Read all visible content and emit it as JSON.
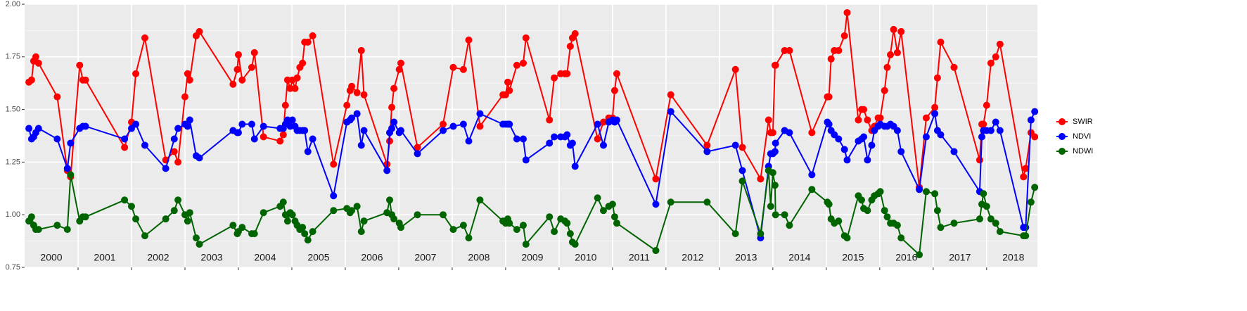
{
  "chart_data": {
    "type": "line",
    "x": [
      2000.08,
      2000.13,
      2000.17,
      2000.21,
      2000.26,
      2000.61,
      2000.8,
      2000.86,
      2001.03,
      2001.09,
      2001.14,
      2001.87,
      2002.0,
      2002.08,
      2002.25,
      2002.64,
      2002.8,
      2002.87,
      2003.0,
      2003.05,
      2003.09,
      2003.21,
      2003.27,
      2003.9,
      2003.98,
      2004.0,
      2004.07,
      2004.25,
      2004.3,
      2004.47,
      2004.78,
      2004.84,
      2004.88,
      2004.92,
      2004.97,
      2005.01,
      2005.06,
      2005.1,
      2005.15,
      2005.2,
      2005.24,
      2005.3,
      2005.39,
      2005.78,
      2006.03,
      2006.09,
      2006.12,
      2006.22,
      2006.3,
      2006.35,
      2006.78,
      2006.83,
      2006.87,
      2006.91,
      2007.01,
      2007.04,
      2007.35,
      2007.83,
      2008.02,
      2008.21,
      2008.31,
      2008.52,
      2008.95,
      2009.0,
      2009.04,
      2009.07,
      2009.21,
      2009.33,
      2009.38,
      2009.82,
      2009.91,
      2010.03,
      2010.11,
      2010.15,
      2010.21,
      2010.25,
      2010.3,
      2010.72,
      2010.83,
      2010.93,
      2011.0,
      2011.04,
      2011.08,
      2011.81,
      2012.09,
      2012.77,
      2013.3,
      2013.43,
      2013.77,
      2013.92,
      2013.96,
      2014.0,
      2014.04,
      2014.05,
      2014.22,
      2014.31,
      2014.73,
      2015.02,
      2015.05,
      2015.09,
      2015.15,
      2015.23,
      2015.34,
      2015.39,
      2015.6,
      2015.66,
      2015.7,
      2015.77,
      2015.85,
      2015.9,
      2015.97,
      2016.01,
      2016.09,
      2016.14,
      2016.2,
      2016.26,
      2016.33,
      2016.4,
      2016.74,
      2016.87,
      2017.03,
      2017.08,
      2017.14,
      2017.39,
      2017.87,
      2017.91,
      2017.94,
      2018.0,
      2018.08,
      2018.17,
      2018.25,
      2018.69,
      2018.73,
      2018.83,
      2018.9
    ],
    "series": [
      {
        "name": "SWIR",
        "color": "#ff0000",
        "values": [
          1.63,
          1.64,
          1.73,
          1.75,
          1.72,
          1.56,
          1.21,
          1.18,
          1.71,
          1.64,
          1.64,
          1.32,
          1.44,
          1.67,
          1.84,
          1.26,
          1.3,
          1.25,
          1.56,
          1.67,
          1.64,
          1.85,
          1.87,
          1.62,
          1.69,
          1.76,
          1.64,
          1.7,
          1.77,
          1.37,
          1.35,
          1.38,
          1.52,
          1.64,
          1.6,
          1.64,
          1.6,
          1.65,
          1.7,
          1.72,
          1.82,
          1.82,
          1.85,
          1.24,
          1.52,
          1.59,
          1.61,
          1.58,
          1.78,
          1.57,
          1.24,
          1.35,
          1.51,
          1.6,
          1.69,
          1.72,
          1.32,
          1.43,
          1.7,
          1.69,
          1.83,
          1.42,
          1.57,
          1.57,
          1.63,
          1.59,
          1.71,
          1.72,
          1.84,
          1.45,
          1.65,
          1.67,
          1.67,
          1.67,
          1.8,
          1.84,
          1.86,
          1.36,
          1.44,
          1.46,
          1.46,
          1.59,
          1.67,
          1.17,
          1.57,
          1.33,
          1.69,
          1.32,
          1.17,
          1.45,
          1.39,
          1.39,
          1.71,
          1.71,
          1.78,
          1.78,
          1.39,
          1.56,
          1.56,
          1.74,
          1.78,
          1.78,
          1.85,
          1.96,
          1.45,
          1.5,
          1.5,
          1.45,
          1.4,
          1.42,
          1.46,
          1.46,
          1.59,
          1.7,
          1.76,
          1.88,
          1.77,
          1.87,
          1.13,
          1.46,
          1.51,
          1.65,
          1.82,
          1.7,
          1.26,
          1.43,
          1.43,
          1.52,
          1.72,
          1.75,
          1.81,
          1.18,
          1.22,
          1.39,
          1.37
        ]
      },
      {
        "name": "NDVI",
        "color": "#0000ff",
        "values": [
          1.41,
          1.36,
          1.37,
          1.39,
          1.41,
          1.36,
          1.22,
          1.34,
          1.41,
          1.42,
          1.42,
          1.36,
          1.41,
          1.43,
          1.33,
          1.22,
          1.36,
          1.41,
          1.43,
          1.42,
          1.45,
          1.28,
          1.27,
          1.4,
          1.39,
          1.39,
          1.43,
          1.43,
          1.36,
          1.42,
          1.41,
          1.41,
          1.43,
          1.45,
          1.42,
          1.45,
          1.42,
          1.4,
          1.4,
          1.4,
          1.4,
          1.3,
          1.36,
          1.09,
          1.44,
          1.45,
          1.46,
          1.48,
          1.33,
          1.4,
          1.21,
          1.39,
          1.41,
          1.44,
          1.39,
          1.4,
          1.29,
          1.4,
          1.42,
          1.43,
          1.35,
          1.48,
          1.43,
          1.43,
          1.43,
          1.43,
          1.36,
          1.36,
          1.26,
          1.34,
          1.37,
          1.37,
          1.37,
          1.38,
          1.33,
          1.34,
          1.23,
          1.43,
          1.33,
          1.44,
          1.45,
          1.44,
          1.45,
          1.05,
          1.49,
          1.3,
          1.33,
          1.21,
          0.89,
          1.23,
          1.29,
          1.29,
          1.3,
          1.34,
          1.4,
          1.39,
          1.19,
          1.44,
          1.43,
          1.4,
          1.38,
          1.36,
          1.31,
          1.26,
          1.35,
          1.36,
          1.37,
          1.26,
          1.33,
          1.4,
          1.42,
          1.43,
          1.42,
          1.42,
          1.43,
          1.42,
          1.4,
          1.3,
          1.12,
          1.37,
          1.48,
          1.4,
          1.38,
          1.3,
          1.11,
          1.37,
          1.4,
          1.4,
          1.4,
          1.44,
          1.4,
          0.94,
          0.94,
          1.45,
          1.49
        ]
      },
      {
        "name": "NDWI",
        "color": "#006400",
        "values": [
          0.97,
          0.99,
          0.95,
          0.93,
          0.93,
          0.95,
          0.93,
          1.19,
          0.97,
          0.99,
          0.99,
          1.07,
          1.04,
          0.98,
          0.9,
          0.98,
          1.02,
          1.07,
          1.0,
          0.97,
          1.01,
          0.89,
          0.86,
          0.95,
          0.91,
          0.92,
          0.94,
          0.91,
          0.91,
          1.01,
          1.04,
          1.06,
          1.0,
          0.97,
          1.01,
          1.0,
          0.97,
          0.95,
          0.93,
          0.94,
          0.91,
          0.88,
          0.92,
          1.02,
          1.03,
          1.01,
          1.02,
          1.04,
          0.92,
          0.97,
          1.01,
          1.07,
          1.0,
          0.98,
          0.96,
          0.94,
          1.0,
          1.0,
          0.93,
          0.95,
          0.89,
          1.07,
          0.97,
          0.96,
          0.98,
          0.96,
          0.93,
          0.95,
          0.86,
          0.99,
          0.92,
          0.98,
          0.97,
          0.96,
          0.91,
          0.87,
          0.86,
          1.08,
          1.02,
          1.04,
          1.05,
          0.99,
          0.96,
          0.83,
          1.06,
          1.06,
          0.91,
          1.16,
          0.91,
          1.21,
          1.04,
          1.2,
          1.14,
          1.0,
          1.0,
          0.95,
          1.12,
          1.06,
          1.05,
          0.98,
          0.96,
          0.97,
          0.9,
          0.89,
          1.09,
          1.07,
          1.03,
          1.02,
          1.07,
          1.09,
          1.1,
          1.11,
          1.02,
          0.99,
          0.96,
          0.96,
          0.95,
          0.89,
          0.81,
          1.11,
          1.1,
          1.02,
          0.94,
          0.96,
          0.98,
          1.05,
          1.1,
          1.04,
          0.98,
          0.96,
          0.92,
          0.9,
          0.9,
          1.06,
          1.13
        ]
      }
    ],
    "xlim": [
      2000.0,
      2018.95
    ],
    "xticks": [
      2001,
      2002,
      2003,
      2004,
      2005,
      2006,
      2007,
      2008,
      2009,
      2010,
      2011,
      2012,
      2013,
      2014,
      2015,
      2016,
      2017,
      2018
    ],
    "x_labels": [
      {
        "value": 2000.5,
        "label": "2000"
      },
      {
        "value": 2001.5,
        "label": "2001"
      },
      {
        "value": 2002.5,
        "label": "2002"
      },
      {
        "value": 2003.5,
        "label": "2003"
      },
      {
        "value": 2004.5,
        "label": "2004"
      },
      {
        "value": 2005.5,
        "label": "2005"
      },
      {
        "value": 2006.5,
        "label": "2006"
      },
      {
        "value": 2007.5,
        "label": "2007"
      },
      {
        "value": 2008.5,
        "label": "2008"
      },
      {
        "value": 2009.5,
        "label": "2009"
      },
      {
        "value": 2010.5,
        "label": "2010"
      },
      {
        "value": 2011.5,
        "label": "2011"
      },
      {
        "value": 2012.5,
        "label": "2012"
      },
      {
        "value": 2013.5,
        "label": "2013"
      },
      {
        "value": 2014.5,
        "label": "2014"
      },
      {
        "value": 2015.5,
        "label": "2015"
      },
      {
        "value": 2016.5,
        "label": "2016"
      },
      {
        "value": 2017.5,
        "label": "2017"
      },
      {
        "value": 2018.5,
        "label": "2018"
      }
    ],
    "ylim": [
      0.75,
      2.0
    ],
    "yticks": [
      {
        "value": 0.75,
        "label": "0.75"
      },
      {
        "value": 1,
        "label": "1.00"
      },
      {
        "value": 1.25,
        "label": "1.25"
      },
      {
        "value": 1.5,
        "label": "1.50"
      },
      {
        "value": 1.75,
        "label": "1.75"
      },
      {
        "value": 2,
        "label": "2.00"
      }
    ],
    "grid": true,
    "legend": "right"
  }
}
